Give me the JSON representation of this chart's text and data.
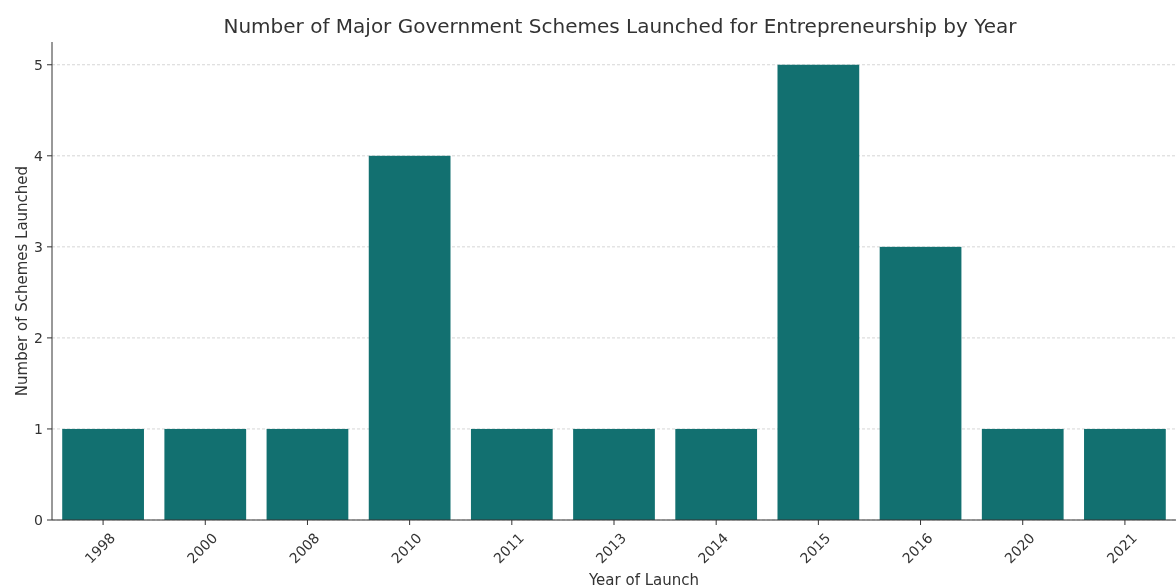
{
  "chart_data": {
    "type": "bar",
    "title": "Number of Major Government Schemes Launched for Entrepreneurship by Year",
    "xlabel": "Year of Launch",
    "ylabel": "Number of Schemes Launched",
    "categories": [
      "1998",
      "2000",
      "2008",
      "2010",
      "2011",
      "2013",
      "2014",
      "2015",
      "2016",
      "2020",
      "2021"
    ],
    "values": [
      1,
      1,
      1,
      4,
      1,
      1,
      1,
      5,
      3,
      1,
      1
    ],
    "color": "#127070",
    "ylim": [
      0,
      5.25
    ],
    "yticks": [
      0,
      1,
      2,
      3,
      4,
      5
    ],
    "grid": "y"
  }
}
